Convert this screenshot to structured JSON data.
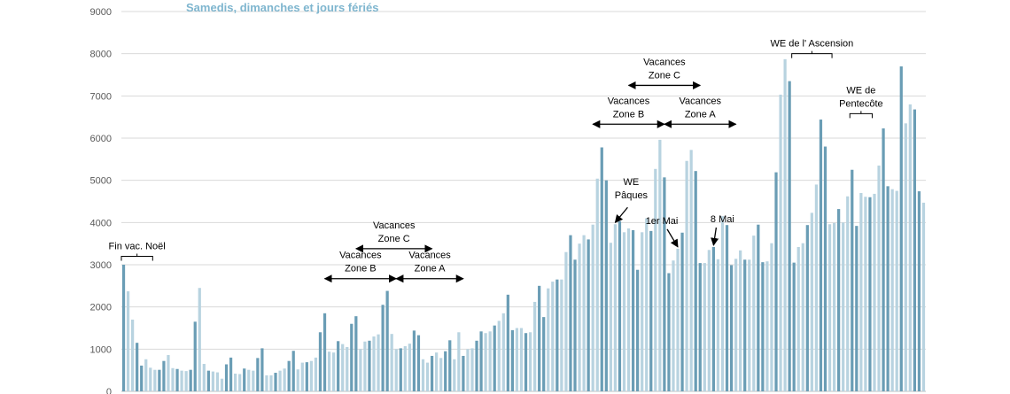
{
  "chart_data": {
    "type": "bar",
    "title": "Samedis, dimanches et jours fériés",
    "xlabel": "",
    "ylabel": "",
    "ylim": [
      0,
      9000
    ],
    "yticks": [
      0,
      1000,
      2000,
      3000,
      4000,
      5000,
      6000,
      7000,
      8000,
      9000
    ],
    "grid": true,
    "colors": {
      "title": "#7fb6cf",
      "light": "#b8d3e0",
      "dark": "#6a9db5",
      "grid": "#d9d9d9",
      "axis": "#bfbfbf",
      "annotation": "#000000"
    },
    "bar_shades": [
      "dark",
      "light",
      "light",
      "dark",
      "dark",
      "light",
      "light",
      "light",
      "dark",
      "dark",
      "light",
      "light",
      "dark",
      "light",
      "light",
      "dark",
      "dark",
      "light",
      "light",
      "dark",
      "light",
      "light",
      "light",
      "dark",
      "dark",
      "light",
      "light",
      "dark",
      "light",
      "light",
      "dark",
      "dark",
      "light",
      "light",
      "dark",
      "light",
      "light",
      "dark",
      "dark",
      "light",
      "light",
      "dark",
      "light",
      "light",
      "dark",
      "dark",
      "light",
      "light",
      "dark",
      "light",
      "light",
      "dark",
      "dark",
      "light",
      "light",
      "dark",
      "light",
      "light",
      "dark",
      "dark",
      "light",
      "light",
      "dark",
      "light",
      "light",
      "dark",
      "dark",
      "light",
      "light",
      "dark",
      "light",
      "light",
      "dark",
      "dark",
      "light",
      "light",
      "dark",
      "light",
      "light",
      "dark",
      "dark",
      "light",
      "light",
      "dark",
      "light",
      "light",
      "dark",
      "dark",
      "light",
      "light",
      "dark",
      "light",
      "light",
      "dark",
      "dark",
      "light",
      "light",
      "dark",
      "light",
      "light",
      "dark",
      "dark",
      "light",
      "light",
      "dark",
      "light",
      "light",
      "dark",
      "dark",
      "light",
      "light",
      "dark",
      "light",
      "light",
      "dark",
      "dark",
      "light",
      "light",
      "dark",
      "light",
      "light",
      "dark",
      "dark",
      "light",
      "light",
      "dark",
      "light",
      "light",
      "dark",
      "dark",
      "light",
      "light",
      "dark",
      "light",
      "light",
      "dark",
      "dark",
      "light",
      "light",
      "dark",
      "light",
      "light",
      "dark",
      "dark",
      "light",
      "light",
      "dark",
      "light",
      "light",
      "dark",
      "dark",
      "light",
      "light",
      "dark",
      "light",
      "light",
      "dark",
      "dark",
      "light",
      "light",
      "dark",
      "light",
      "light",
      "dark",
      "dark",
      "light",
      "light",
      "dark",
      "light",
      "light",
      "dark",
      "dark",
      "light",
      "light",
      "dark",
      "light",
      "light",
      "dark",
      "dark",
      "light",
      "light",
      "dark",
      "light",
      "light",
      "dark",
      "dark",
      "light",
      "light",
      "dark",
      "light",
      "light",
      "dark"
    ],
    "values": [
      3000,
      2370,
      1700,
      1150,
      610,
      760,
      560,
      510,
      510,
      720,
      860,
      550,
      530,
      490,
      480,
      510,
      1650,
      2450,
      650,
      490,
      470,
      450,
      300,
      640,
      800,
      420,
      410,
      540,
      510,
      490,
      790,
      1020,
      380,
      380,
      440,
      490,
      540,
      720,
      960,
      520,
      680,
      690,
      720,
      800,
      1400,
      1850,
      940,
      920,
      1190,
      1120,
      1050,
      1600,
      1780,
      1000,
      1180,
      1200,
      1300,
      1350,
      2050,
      2380,
      1360,
      1000,
      1020,
      1070,
      1130,
      1440,
      1330,
      760,
      680,
      840,
      920,
      790,
      950,
      1210,
      760,
      1400,
      840,
      1000,
      1020,
      1200,
      1420,
      1380,
      1420,
      1560,
      1670,
      1850,
      2290,
      1450,
      1500,
      1500,
      1380,
      1400,
      2120,
      2500,
      1760,
      2440,
      2600,
      2650,
      2650,
      3300,
      3700,
      3120,
      3500,
      3700,
      3600,
      3950,
      5040,
      5780,
      5000,
      3520,
      3960,
      4030,
      3770,
      3860,
      3820,
      2880,
      3770,
      4100,
      3800,
      5270,
      5960,
      5070,
      2800,
      3100,
      3380,
      3760,
      5460,
      5720,
      5220,
      3040,
      3040,
      3350,
      3420,
      3130,
      4150,
      3940,
      2990,
      3140,
      3340,
      3120,
      3120,
      3690,
      3950,
      3060,
      3080,
      3510,
      5190,
      7030,
      7870,
      7350,
      3050,
      3420,
      3510,
      3940,
      4230,
      4900,
      6440,
      5800,
      3960,
      3990,
      4320,
      4000,
      4620,
      5250,
      3920,
      4700,
      4610,
      4600,
      4680,
      5350,
      6230,
      4860,
      4790,
      4750,
      7700,
      6350,
      6800,
      6680,
      4740,
      4470
    ],
    "annotations": [
      {
        "text": "Fin vac. Noël",
        "lines": [
          "Fin vac. Noël"
        ],
        "type": "bracket",
        "from": 0,
        "to": 6,
        "y": 3200
      },
      {
        "text": "Vacances Zone B",
        "lines": [
          "Vacances",
          "Zone B"
        ],
        "type": "arrow",
        "from": 45,
        "to": 61,
        "y": 2670
      },
      {
        "text": "Vacances Zone C",
        "lines": [
          "Vacances",
          "Zone C"
        ],
        "type": "arrow",
        "from": 52,
        "to": 69,
        "y": 3380
      },
      {
        "text": "Vacances Zone A",
        "lines": [
          "Vacances",
          "Zone A"
        ],
        "type": "arrow",
        "from": 61,
        "to": 76,
        "y": 2670
      },
      {
        "text": "Vacances Zone B",
        "lines": [
          "Vacances",
          "Zone B"
        ],
        "type": "arrow",
        "from": 105,
        "to": 121,
        "y": 6330
      },
      {
        "text": "Vacances Zone C",
        "lines": [
          "Vacances",
          "Zone C"
        ],
        "type": "arrow",
        "from": 113,
        "to": 129,
        "y": 7250
      },
      {
        "text": "Vacances Zone A",
        "lines": [
          "Vacances",
          "Zone A"
        ],
        "type": "arrow",
        "from": 121,
        "to": 137,
        "y": 6330
      },
      {
        "text": "WE Pâques",
        "lines": [
          "WE",
          "Pâques"
        ],
        "type": "pointer",
        "target": 110
      },
      {
        "text": "1er Mai",
        "lines": [
          "1er Mai"
        ],
        "type": "pointer",
        "target": 124
      },
      {
        "text": "8 Mai",
        "lines": [
          "8 Mai"
        ],
        "type": "pointer",
        "target": 132
      },
      {
        "text": "WE de l' Ascension",
        "lines": [
          "WE de l' Ascension"
        ],
        "type": "bracket",
        "from": 150,
        "to": 158,
        "y": 8000
      },
      {
        "text": "WE de Pentecôte",
        "lines": [
          "WE de",
          "Pentecôte"
        ],
        "type": "bracket",
        "from": 163,
        "to": 167,
        "y": 6580
      }
    ]
  }
}
